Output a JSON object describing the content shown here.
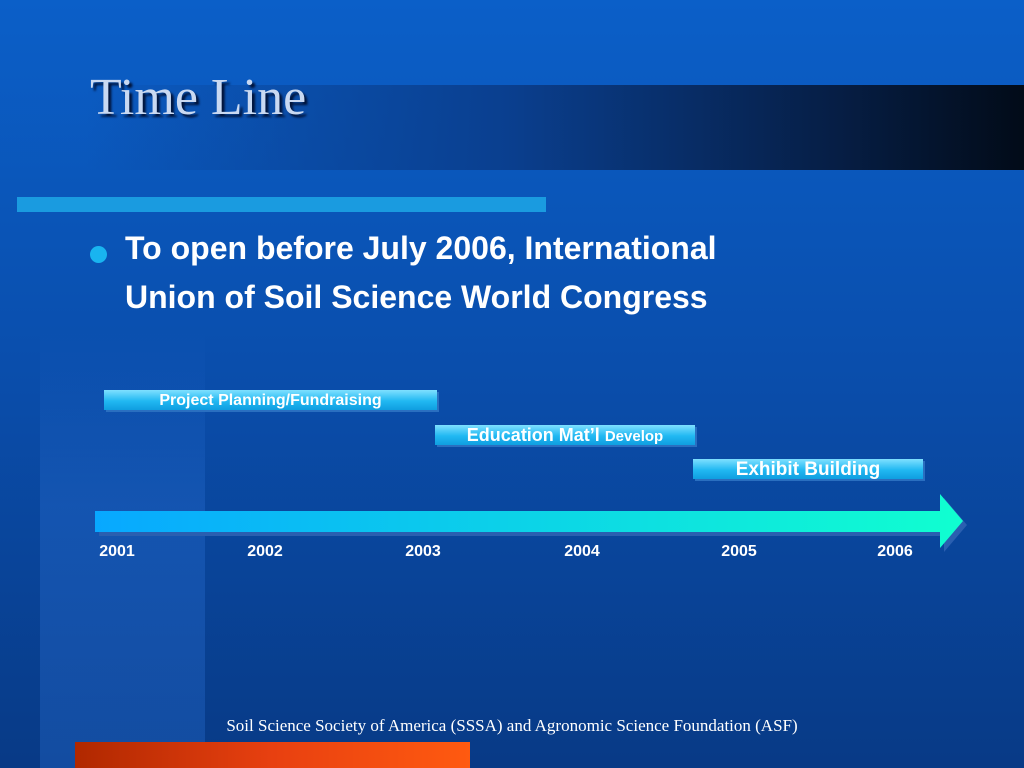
{
  "title": "Time Line",
  "bullet": {
    "line1": "To open before July 2006, International",
    "line2": "Union of Soil Science World Congress"
  },
  "phases": [
    {
      "label": "Project Planning/Fundraising"
    },
    {
      "label": "Education Mat’l",
      "suffix": "Develop"
    },
    {
      "label": "Exhibit Building"
    }
  ],
  "years": [
    "2001",
    "2002",
    "2003",
    "2004",
    "2005",
    "2006"
  ],
  "footer": "Soil Science Society of America (SSSA) and Agronomic Science Foundation (ASF)"
}
